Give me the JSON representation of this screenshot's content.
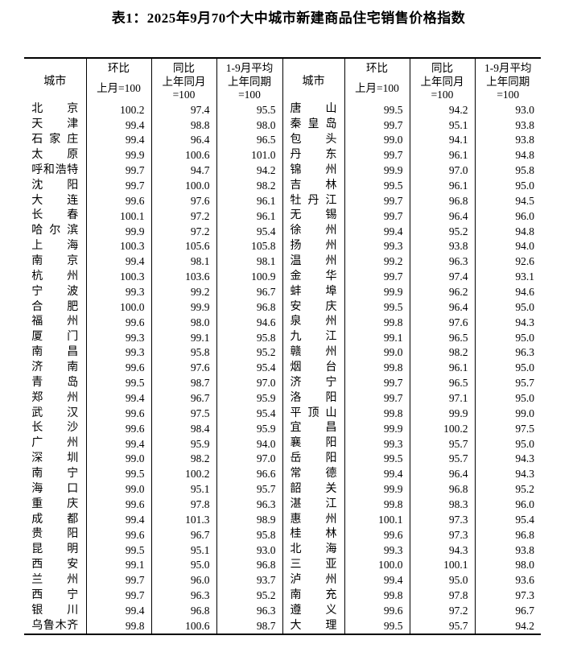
{
  "title": "表1：2025年9月70个大中城市新建商品住宅销售价格指数",
  "table": {
    "header": {
      "city": "城市",
      "mom": "环比",
      "mom_base": "上月=100",
      "yoy": "同比",
      "yoy_base": "上年同月\n=100",
      "avg": "1-9月平均",
      "avg_base": "上年同期\n=100"
    },
    "left_rows": [
      {
        "city": "北京",
        "mom": "100.2",
        "yoy": "97.4",
        "avg": "95.5"
      },
      {
        "city": "天津",
        "mom": "99.4",
        "yoy": "98.8",
        "avg": "98.0"
      },
      {
        "city": "石家庄",
        "mom": "99.4",
        "yoy": "96.4",
        "avg": "96.5"
      },
      {
        "city": "太原",
        "mom": "99.9",
        "yoy": "100.6",
        "avg": "101.0"
      },
      {
        "city": "呼和浩特",
        "mom": "99.7",
        "yoy": "94.7",
        "avg": "94.2"
      },
      {
        "city": "沈阳",
        "mom": "99.7",
        "yoy": "100.0",
        "avg": "98.2"
      },
      {
        "city": "大连",
        "mom": "99.6",
        "yoy": "97.6",
        "avg": "96.1"
      },
      {
        "city": "长春",
        "mom": "100.1",
        "yoy": "97.2",
        "avg": "96.1"
      },
      {
        "city": "哈尔滨",
        "mom": "99.9",
        "yoy": "97.2",
        "avg": "95.4"
      },
      {
        "city": "上海",
        "mom": "100.3",
        "yoy": "105.6",
        "avg": "105.8"
      },
      {
        "city": "南京",
        "mom": "99.4",
        "yoy": "98.1",
        "avg": "98.1"
      },
      {
        "city": "杭州",
        "mom": "100.3",
        "yoy": "103.6",
        "avg": "100.9"
      },
      {
        "city": "宁波",
        "mom": "99.3",
        "yoy": "99.2",
        "avg": "96.7"
      },
      {
        "city": "合肥",
        "mom": "100.0",
        "yoy": "99.9",
        "avg": "96.8"
      },
      {
        "city": "福州",
        "mom": "99.6",
        "yoy": "98.0",
        "avg": "94.6"
      },
      {
        "city": "厦门",
        "mom": "99.3",
        "yoy": "99.1",
        "avg": "95.8"
      },
      {
        "city": "南昌",
        "mom": "99.3",
        "yoy": "95.8",
        "avg": "95.2"
      },
      {
        "city": "济南",
        "mom": "99.6",
        "yoy": "97.6",
        "avg": "95.4"
      },
      {
        "city": "青岛",
        "mom": "99.5",
        "yoy": "98.7",
        "avg": "97.0"
      },
      {
        "city": "郑州",
        "mom": "99.4",
        "yoy": "96.7",
        "avg": "95.9"
      },
      {
        "city": "武汉",
        "mom": "99.6",
        "yoy": "97.5",
        "avg": "95.4"
      },
      {
        "city": "长沙",
        "mom": "99.6",
        "yoy": "98.4",
        "avg": "95.9"
      },
      {
        "city": "广州",
        "mom": "99.4",
        "yoy": "95.9",
        "avg": "94.0"
      },
      {
        "city": "深圳",
        "mom": "99.0",
        "yoy": "98.2",
        "avg": "97.0"
      },
      {
        "city": "南宁",
        "mom": "99.5",
        "yoy": "100.2",
        "avg": "96.6"
      },
      {
        "city": "海口",
        "mom": "99.0",
        "yoy": "95.1",
        "avg": "95.7"
      },
      {
        "city": "重庆",
        "mom": "99.6",
        "yoy": "97.8",
        "avg": "96.3"
      },
      {
        "city": "成都",
        "mom": "99.4",
        "yoy": "101.3",
        "avg": "98.9"
      },
      {
        "city": "贵阳",
        "mom": "99.6",
        "yoy": "96.7",
        "avg": "95.8"
      },
      {
        "city": "昆明",
        "mom": "99.5",
        "yoy": "95.1",
        "avg": "93.0"
      },
      {
        "city": "西安",
        "mom": "99.1",
        "yoy": "95.0",
        "avg": "96.8"
      },
      {
        "city": "兰州",
        "mom": "99.7",
        "yoy": "96.0",
        "avg": "93.7"
      },
      {
        "city": "西宁",
        "mom": "99.7",
        "yoy": "96.3",
        "avg": "95.2"
      },
      {
        "city": "银川",
        "mom": "99.4",
        "yoy": "96.8",
        "avg": "96.3"
      },
      {
        "city": "乌鲁木齐",
        "mom": "99.8",
        "yoy": "100.6",
        "avg": "98.7"
      }
    ],
    "right_rows": [
      {
        "city": "唐山",
        "mom": "99.5",
        "yoy": "94.2",
        "avg": "93.0"
      },
      {
        "city": "秦皇岛",
        "mom": "99.7",
        "yoy": "95.1",
        "avg": "93.8"
      },
      {
        "city": "包头",
        "mom": "99.0",
        "yoy": "94.1",
        "avg": "93.8"
      },
      {
        "city": "丹东",
        "mom": "99.7",
        "yoy": "96.1",
        "avg": "94.8"
      },
      {
        "city": "锦州",
        "mom": "99.9",
        "yoy": "97.0",
        "avg": "95.8"
      },
      {
        "city": "吉林",
        "mom": "99.5",
        "yoy": "96.1",
        "avg": "95.0"
      },
      {
        "city": "牡丹江",
        "mom": "99.7",
        "yoy": "96.8",
        "avg": "94.5"
      },
      {
        "city": "无锡",
        "mom": "99.7",
        "yoy": "96.4",
        "avg": "96.0"
      },
      {
        "city": "徐州",
        "mom": "99.4",
        "yoy": "95.2",
        "avg": "94.8"
      },
      {
        "city": "扬州",
        "mom": "99.3",
        "yoy": "93.8",
        "avg": "94.0"
      },
      {
        "city": "温州",
        "mom": "99.2",
        "yoy": "96.3",
        "avg": "92.6"
      },
      {
        "city": "金华",
        "mom": "99.7",
        "yoy": "97.4",
        "avg": "93.1"
      },
      {
        "city": "蚌埠",
        "mom": "99.9",
        "yoy": "96.2",
        "avg": "94.6"
      },
      {
        "city": "安庆",
        "mom": "99.5",
        "yoy": "96.4",
        "avg": "95.0"
      },
      {
        "city": "泉州",
        "mom": "99.8",
        "yoy": "97.6",
        "avg": "94.3"
      },
      {
        "city": "九江",
        "mom": "99.1",
        "yoy": "96.5",
        "avg": "95.0"
      },
      {
        "city": "赣州",
        "mom": "99.0",
        "yoy": "98.2",
        "avg": "96.3"
      },
      {
        "city": "烟台",
        "mom": "99.8",
        "yoy": "96.1",
        "avg": "95.0"
      },
      {
        "city": "济宁",
        "mom": "99.7",
        "yoy": "96.5",
        "avg": "95.7"
      },
      {
        "city": "洛阳",
        "mom": "99.7",
        "yoy": "97.1",
        "avg": "95.0"
      },
      {
        "city": "平顶山",
        "mom": "99.8",
        "yoy": "99.9",
        "avg": "99.0"
      },
      {
        "city": "宜昌",
        "mom": "99.9",
        "yoy": "100.2",
        "avg": "97.5"
      },
      {
        "city": "襄阳",
        "mom": "99.3",
        "yoy": "95.7",
        "avg": "95.0"
      },
      {
        "city": "岳阳",
        "mom": "99.5",
        "yoy": "95.7",
        "avg": "94.3"
      },
      {
        "city": "常德",
        "mom": "99.4",
        "yoy": "96.4",
        "avg": "94.3"
      },
      {
        "city": "韶关",
        "mom": "99.9",
        "yoy": "96.8",
        "avg": "95.2"
      },
      {
        "city": "湛江",
        "mom": "99.8",
        "yoy": "98.3",
        "avg": "96.0"
      },
      {
        "city": "惠州",
        "mom": "100.1",
        "yoy": "97.3",
        "avg": "95.4"
      },
      {
        "city": "桂林",
        "mom": "99.6",
        "yoy": "97.3",
        "avg": "96.8"
      },
      {
        "city": "北海",
        "mom": "99.3",
        "yoy": "94.3",
        "avg": "93.8"
      },
      {
        "city": "三亚",
        "mom": "100.0",
        "yoy": "100.1",
        "avg": "98.0"
      },
      {
        "city": "泸州",
        "mom": "99.4",
        "yoy": "95.0",
        "avg": "93.6"
      },
      {
        "city": "南充",
        "mom": "99.8",
        "yoy": "97.8",
        "avg": "97.3"
      },
      {
        "city": "遵义",
        "mom": "99.6",
        "yoy": "97.2",
        "avg": "96.7"
      },
      {
        "city": "大理",
        "mom": "99.5",
        "yoy": "95.7",
        "avg": "94.2"
      }
    ]
  }
}
